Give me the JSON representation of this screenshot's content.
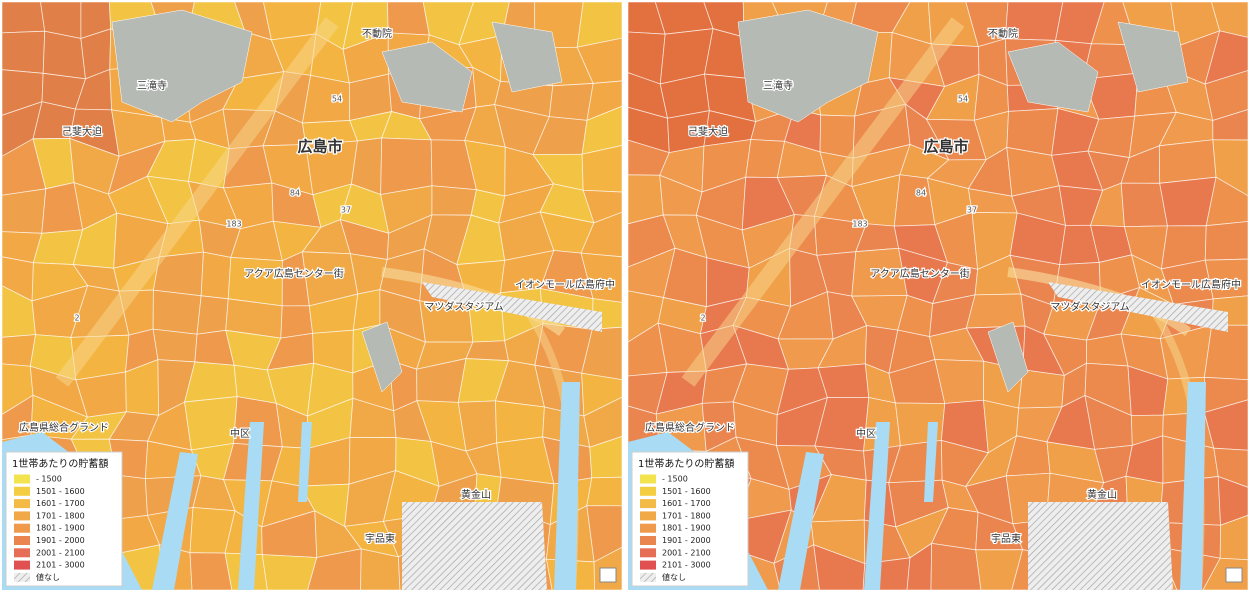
{
  "panels": [
    {
      "labels": [
        "三滝寺",
        "不動院",
        "己斐大迫",
        "広島市",
        "アクア広島センター街",
        "マツダスタジアム",
        "イオンモール広島府中",
        "広島県総合グランド",
        "中区",
        "宇品東",
        "黄金山",
        "54",
        "37",
        "84",
        "183",
        "2"
      ],
      "legend": {
        "title": "1世帯あたりの貯蓄額",
        "items": [
          {
            "label": "- 1500",
            "color": "#f3e34e"
          },
          {
            "label": "1501 - 1600",
            "color": "#f5cd40"
          },
          {
            "label": "1601 - 1700",
            "color": "#f3bb46"
          },
          {
            "label": "1701 - 1800",
            "color": "#f1a948"
          },
          {
            "label": "1801 - 1900",
            "color": "#ee994c"
          },
          {
            "label": "1901 - 2000",
            "color": "#ea8550"
          },
          {
            "label": "2001 - 2100",
            "color": "#e66e56"
          },
          {
            "label": "2101 - 3000",
            "color": "#e05050"
          },
          {
            "label": "値なし",
            "color": "#e4e4e4",
            "hatch": true
          }
        ]
      }
    },
    {
      "labels": [
        "三滝寺",
        "不動院",
        "己斐大迫",
        "広島市",
        "アクア広島センター街",
        "マツダスタジアム",
        "イオンモール広島府中",
        "広島県総合グランド",
        "中区",
        "宇品東",
        "黄金山",
        "54",
        "37",
        "84",
        "183",
        "2"
      ],
      "legend": {
        "title": "1世帯あたりの貯蓄額",
        "items": [
          {
            "label": "- 1500",
            "color": "#f3e34e"
          },
          {
            "label": "1501 - 1600",
            "color": "#f5cd40"
          },
          {
            "label": "1601 - 1700",
            "color": "#f3bb46"
          },
          {
            "label": "1701 - 1800",
            "color": "#f1a948"
          },
          {
            "label": "1801 - 1900",
            "color": "#ee994c"
          },
          {
            "label": "1901 - 2000",
            "color": "#ea8550"
          },
          {
            "label": "2001 - 2100",
            "color": "#e66e56"
          },
          {
            "label": "2101 - 3000",
            "color": "#e05050"
          },
          {
            "label": "値なし",
            "color": "#e4e4e4",
            "hatch": true
          }
        ]
      }
    }
  ]
}
